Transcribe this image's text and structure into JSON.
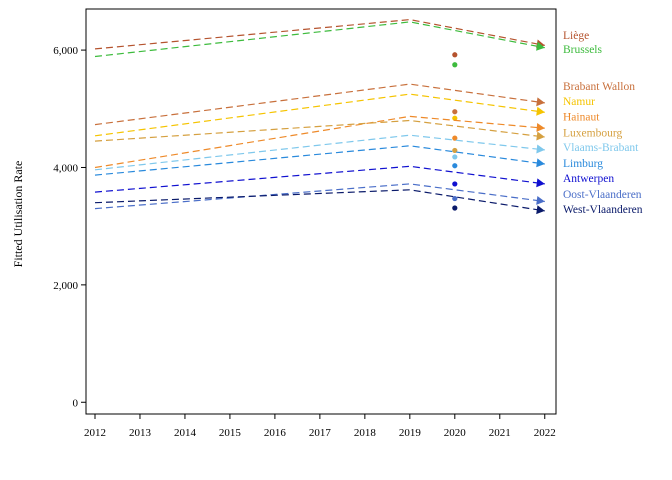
{
  "chart_data": {
    "type": "line",
    "ylabel": "Fitted Utilisation Rate",
    "xlabel": "",
    "x_ticks": [
      2012,
      2013,
      2014,
      2015,
      2016,
      2017,
      2018,
      2019,
      2020,
      2021,
      2022
    ],
    "y_ticks": [
      0,
      2000,
      4000,
      6000
    ],
    "y_tick_labels": [
      "0",
      "2,000",
      "4,000",
      "6,000"
    ],
    "xlim": [
      2011.8,
      2022.25
    ],
    "ylim": [
      -200,
      6700
    ],
    "grid": false,
    "legend": "right, labels at line ends",
    "series": [
      {
        "name": "Liège",
        "color": "#b5532e",
        "x": [
          2012,
          2019,
          2022
        ],
        "y": [
          6020,
          6520,
          6080
        ],
        "observed_2020": 5920
      },
      {
        "name": "Brussels",
        "color": "#3dbb3d",
        "x": [
          2012,
          2019,
          2022
        ],
        "y": [
          5890,
          6480,
          6040
        ],
        "observed_2020": 5750
      },
      {
        "name": "Brabant Wallon",
        "color": "#c8703c",
        "x": [
          2012,
          2019,
          2022
        ],
        "y": [
          4730,
          5420,
          5100
        ],
        "observed_2020": 4950
      },
      {
        "name": "Namur",
        "color": "#f5c400",
        "x": [
          2012,
          2019,
          2022
        ],
        "y": [
          4540,
          5250,
          4940
        ],
        "observed_2020": 4840
      },
      {
        "name": "Hainaut",
        "color": "#ee8a2a",
        "x": [
          2012,
          2019,
          2022
        ],
        "y": [
          4000,
          4870,
          4670
        ],
        "observed_2020": 4500
      },
      {
        "name": "Luxembourg",
        "color": "#d5a040",
        "x": [
          2012,
          2019,
          2022
        ],
        "y": [
          4450,
          4800,
          4520
        ],
        "observed_2020": 4290
      },
      {
        "name": "Vlaams-Brabant",
        "color": "#7fc8ec",
        "x": [
          2012,
          2019,
          2022
        ],
        "y": [
          3960,
          4550,
          4300
        ],
        "observed_2020": 4180
      },
      {
        "name": "Limburg",
        "color": "#2a8adc",
        "x": [
          2012,
          2019,
          2022
        ],
        "y": [
          3870,
          4370,
          4060
        ],
        "observed_2020": 4030
      },
      {
        "name": "Antwerpen",
        "color": "#1010d0",
        "x": [
          2012,
          2019,
          2022
        ],
        "y": [
          3580,
          4020,
          3720
        ],
        "observed_2020": 3720
      },
      {
        "name": "Oost-Vlaanderen",
        "color": "#4a6ec8",
        "x": [
          2012,
          2019,
          2022
        ],
        "y": [
          3300,
          3720,
          3420
        ],
        "observed_2020": 3470
      },
      {
        "name": "West-Vlaanderen",
        "color": "#0a1a6a",
        "x": [
          2012,
          2019,
          2022
        ],
        "y": [
          3400,
          3620,
          3260
        ],
        "observed_2020": 3310
      }
    ],
    "labels": [
      {
        "series": "Liège",
        "text": "Liège",
        "value": 6260
      },
      {
        "series": "Brussels",
        "text": "Brussels",
        "value": 6020
      },
      {
        "series": "Brabant Wallon",
        "text": "Brabant Wallon",
        "value": 5390
      },
      {
        "series": "Namur",
        "text": "Namur",
        "value": 5130
      },
      {
        "series": "Hainaut",
        "text": "Hainaut",
        "value": 4870
      },
      {
        "series": "Luxembourg",
        "text": "Luxembourg",
        "value": 4600
      },
      {
        "series": "Vlaams-Brabant",
        "text": "Vlaams-Brabant",
        "value": 4350
      },
      {
        "series": "Limburg",
        "text": "Limburg",
        "value": 4080
      },
      {
        "series": "Antwerpen",
        "text": "Antwerpen",
        "value": 3820
      },
      {
        "series": "Oost-Vlaanderen",
        "text": "Oost-Vlaanderen",
        "value": 3550
      },
      {
        "series": "West-Vlaanderen",
        "text": "West-Vlaanderen",
        "value": 3290
      }
    ]
  }
}
